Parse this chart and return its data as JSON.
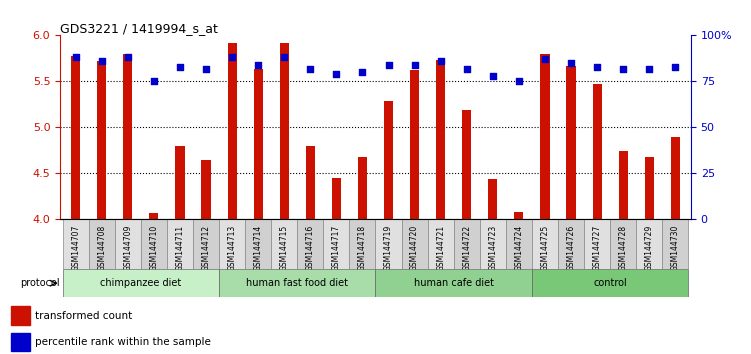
{
  "title": "GDS3221 / 1419994_s_at",
  "samples": [
    "GSM144707",
    "GSM144708",
    "GSM144709",
    "GSM144710",
    "GSM144711",
    "GSM144712",
    "GSM144713",
    "GSM144714",
    "GSM144715",
    "GSM144716",
    "GSM144717",
    "GSM144718",
    "GSM144719",
    "GSM144720",
    "GSM144721",
    "GSM144722",
    "GSM144723",
    "GSM144724",
    "GSM144725",
    "GSM144726",
    "GSM144727",
    "GSM144728",
    "GSM144729",
    "GSM144730"
  ],
  "red_values": [
    5.78,
    5.72,
    5.8,
    4.07,
    4.8,
    4.65,
    5.92,
    5.63,
    5.92,
    4.8,
    4.45,
    4.68,
    5.29,
    5.62,
    5.73,
    5.19,
    4.44,
    4.08,
    5.8,
    5.67,
    5.47,
    4.74,
    4.68,
    4.9
  ],
  "blue_values": [
    88,
    86,
    88,
    75,
    83,
    82,
    88,
    84,
    88,
    82,
    79,
    80,
    84,
    84,
    86,
    82,
    78,
    75,
    87,
    85,
    83,
    82,
    82,
    83
  ],
  "groups": [
    {
      "label": "chimpanzee diet",
      "start": 0,
      "end": 5,
      "color": "#c8f0c8"
    },
    {
      "label": "human fast food diet",
      "start": 6,
      "end": 11,
      "color": "#a8dca8"
    },
    {
      "label": "human cafe diet",
      "start": 12,
      "end": 17,
      "color": "#90d090"
    },
    {
      "label": "control",
      "start": 18,
      "end": 23,
      "color": "#78c878"
    }
  ],
  "ylim_left": [
    4.0,
    6.0
  ],
  "ylim_right": [
    0,
    100
  ],
  "yticks_left": [
    4.0,
    4.5,
    5.0,
    5.5,
    6.0
  ],
  "yticks_right": [
    0,
    25,
    50,
    75,
    100
  ],
  "bar_color": "#cc1100",
  "dot_color": "#0000cc",
  "bg_color": "#ffffff",
  "ylabel_left_color": "#cc1100",
  "ylabel_right_color": "#0000cc"
}
